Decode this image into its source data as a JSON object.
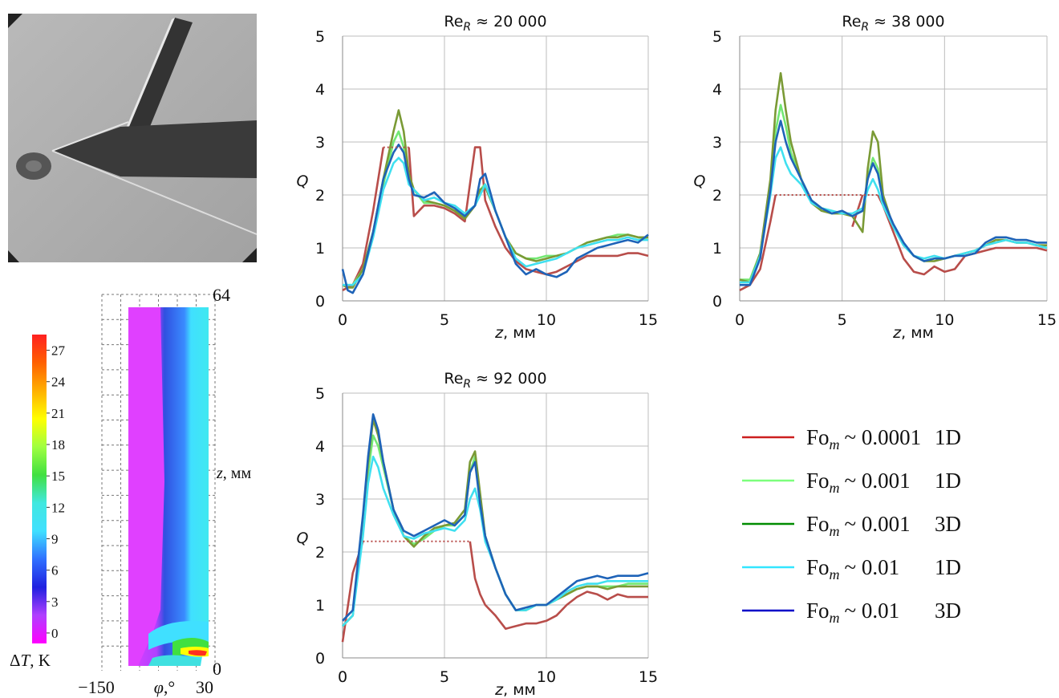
{
  "chart_data": [
    {
      "type": "line",
      "title": {
        "main": "Re",
        "sub": "R",
        "rest": "≈ 20 000"
      },
      "xlabel": {
        "var": "z",
        "unit": ", мм"
      },
      "ylabel": "Q",
      "xlim": [
        0,
        15
      ],
      "ylim": [
        0,
        5
      ],
      "xticks": [
        0,
        5,
        10,
        15
      ],
      "yticks": [
        0,
        1,
        2,
        3,
        4,
        5
      ],
      "grid": true,
      "x": [
        0,
        0.25,
        0.5,
        1,
        1.5,
        2,
        2.5,
        2.75,
        3,
        3.25,
        3.5,
        4,
        4.5,
        5,
        5.5,
        6,
        6.5,
        6.75,
        7,
        7.5,
        8,
        8.5,
        9,
        9.5,
        10,
        10.5,
        11,
        11.5,
        12,
        12.5,
        13,
        13.5,
        14,
        14.5,
        15
      ],
      "series": [
        {
          "color": "#b84d4a",
          "values": [
            0.2,
            0.25,
            0.3,
            0.7,
            1.7,
            2.9,
            null,
            null,
            null,
            2.9,
            1.6,
            1.8,
            1.8,
            1.75,
            1.65,
            1.5,
            2.9,
            2.9,
            1.9,
            1.4,
            1.0,
            0.75,
            0.6,
            0.55,
            0.5,
            0.55,
            0.65,
            0.75,
            0.85,
            0.85,
            0.85,
            0.85,
            0.9,
            0.9,
            0.85
          ]
        },
        {
          "color": "#73e873",
          "values": [
            0.3,
            0.3,
            0.3,
            0.6,
            1.3,
            2.2,
            3.0,
            3.2,
            2.9,
            2.3,
            2.1,
            1.85,
            1.85,
            1.8,
            1.7,
            1.6,
            1.8,
            2.1,
            2.2,
            1.7,
            1.2,
            0.9,
            0.8,
            0.8,
            0.85,
            0.85,
            0.9,
            1.0,
            1.1,
            1.15,
            1.2,
            1.25,
            1.25,
            1.2,
            1.15
          ]
        },
        {
          "color": "#7a9a35",
          "values": [
            0.3,
            0.25,
            0.25,
            0.6,
            1.3,
            2.3,
            3.2,
            3.6,
            3.2,
            2.4,
            2.1,
            1.9,
            1.85,
            1.8,
            1.7,
            1.55,
            1.8,
            2.1,
            2.15,
            1.7,
            1.2,
            0.9,
            0.8,
            0.75,
            0.8,
            0.85,
            0.9,
            1.0,
            1.1,
            1.15,
            1.2,
            1.2,
            1.25,
            1.2,
            1.2
          ]
        },
        {
          "color": "#40e0f0",
          "values": [
            0.3,
            0.3,
            0.3,
            0.5,
            1.2,
            2.1,
            2.6,
            2.7,
            2.6,
            2.2,
            2.1,
            1.9,
            1.95,
            1.85,
            1.8,
            1.65,
            1.8,
            2.0,
            2.2,
            1.7,
            1.2,
            0.8,
            0.65,
            0.7,
            0.75,
            0.8,
            0.9,
            1.0,
            1.05,
            1.1,
            1.15,
            1.15,
            1.2,
            1.15,
            1.15
          ]
        },
        {
          "color": "#1e63b8",
          "values": [
            0.6,
            0.2,
            0.15,
            0.5,
            1.3,
            2.3,
            2.8,
            2.95,
            2.8,
            2.3,
            2.0,
            1.95,
            2.05,
            1.85,
            1.75,
            1.6,
            1.8,
            2.3,
            2.4,
            1.7,
            1.2,
            0.7,
            0.5,
            0.6,
            0.5,
            0.45,
            0.55,
            0.8,
            0.9,
            1.0,
            1.05,
            1.1,
            1.15,
            1.1,
            1.25
          ]
        }
      ],
      "cap_lines": [
        {
          "color": "#b84d4a",
          "x": [
            2,
            3.25
          ],
          "y": [
            2.9,
            2.9
          ]
        }
      ]
    },
    {
      "type": "line",
      "title": {
        "main": "Re",
        "sub": "R",
        "rest": "≈ 38 000"
      },
      "xlabel": {
        "var": "z",
        "unit": ", мм"
      },
      "ylabel": "Q",
      "xlim": [
        0,
        15
      ],
      "ylim": [
        0,
        5
      ],
      "xticks": [
        0,
        5,
        10,
        15
      ],
      "yticks": [
        0,
        1,
        2,
        3,
        4,
        5
      ],
      "grid": true,
      "x": [
        0,
        0.5,
        1,
        1.5,
        1.75,
        2,
        2.25,
        2.5,
        3,
        3.5,
        4,
        4.5,
        5,
        5.5,
        6,
        6.25,
        6.5,
        6.75,
        7,
        7.5,
        8,
        8.5,
        9,
        9.5,
        10,
        10.5,
        11,
        11.5,
        12,
        12.5,
        13,
        13.5,
        14,
        14.5,
        15
      ],
      "series": [
        {
          "color": "#b84d4a",
          "values": [
            0.2,
            0.3,
            0.6,
            1.5,
            2.0,
            null,
            null,
            null,
            null,
            null,
            null,
            null,
            null,
            1.4,
            2.0,
            null,
            null,
            2.0,
            1.8,
            1.3,
            0.8,
            0.55,
            0.5,
            0.65,
            0.55,
            0.6,
            0.85,
            0.9,
            0.95,
            1.0,
            1.0,
            1.0,
            1.0,
            1.0,
            0.95
          ]
        },
        {
          "color": "#73e873",
          "values": [
            0.4,
            0.4,
            0.9,
            2.2,
            3.2,
            3.7,
            3.3,
            2.8,
            2.3,
            1.9,
            1.75,
            1.7,
            1.65,
            1.6,
            1.7,
            2.3,
            2.7,
            2.5,
            1.9,
            1.4,
            1.05,
            0.85,
            0.75,
            0.8,
            0.8,
            0.85,
            0.9,
            0.95,
            1.05,
            1.1,
            1.15,
            1.1,
            1.1,
            1.05,
            1.0
          ]
        },
        {
          "color": "#7a9a35",
          "values": [
            0.4,
            0.35,
            0.9,
            2.3,
            3.6,
            4.3,
            3.6,
            3.0,
            2.3,
            1.85,
            1.7,
            1.65,
            1.65,
            1.6,
            1.3,
            2.5,
            3.2,
            3.0,
            2.0,
            1.4,
            1.05,
            0.85,
            0.75,
            0.75,
            0.8,
            0.85,
            0.9,
            0.95,
            1.05,
            1.15,
            1.15,
            1.1,
            1.1,
            1.05,
            1.05
          ]
        },
        {
          "color": "#40e0f0",
          "values": [
            0.35,
            0.35,
            0.85,
            2.0,
            2.7,
            2.9,
            2.6,
            2.4,
            2.2,
            1.85,
            1.75,
            1.7,
            1.65,
            1.65,
            1.75,
            2.1,
            2.3,
            2.1,
            1.8,
            1.4,
            1.05,
            0.85,
            0.8,
            0.85,
            0.8,
            0.85,
            0.9,
            0.95,
            1.05,
            1.1,
            1.15,
            1.1,
            1.1,
            1.05,
            1.0
          ]
        },
        {
          "color": "#1e63b8",
          "values": [
            0.3,
            0.3,
            0.8,
            2.1,
            3.0,
            3.4,
            3.0,
            2.7,
            2.3,
            1.9,
            1.75,
            1.65,
            1.7,
            1.6,
            1.7,
            2.3,
            2.6,
            2.4,
            1.9,
            1.45,
            1.1,
            0.85,
            0.75,
            0.8,
            0.8,
            0.85,
            0.85,
            0.9,
            1.1,
            1.2,
            1.2,
            1.15,
            1.15,
            1.1,
            1.1
          ]
        }
      ],
      "cap_lines": [
        {
          "color": "#b84d4a",
          "x": [
            1.75,
            6.75
          ],
          "y": [
            2.0,
            2.0
          ]
        }
      ]
    },
    {
      "type": "line",
      "title": {
        "main": "Re",
        "sub": "R",
        "rest": "≈ 92 000"
      },
      "xlabel": {
        "var": "z",
        "unit": ", мм"
      },
      "ylabel": "Q",
      "xlim": [
        0,
        15
      ],
      "ylim": [
        0,
        5
      ],
      "xticks": [
        0,
        5,
        10,
        15
      ],
      "yticks": [
        0,
        1,
        2,
        3,
        4,
        5
      ],
      "grid": true,
      "x": [
        0,
        0.5,
        1,
        1.25,
        1.5,
        1.75,
        2,
        2.5,
        3,
        3.5,
        4,
        4.5,
        5,
        5.5,
        6,
        6.25,
        6.5,
        6.75,
        7,
        7.5,
        8,
        8.5,
        9,
        9.5,
        10,
        10.5,
        11,
        11.5,
        12,
        12.5,
        13,
        13.5,
        14,
        14.5,
        15
      ],
      "series": [
        {
          "color": "#b84d4a",
          "values": [
            0.3,
            1.6,
            2.2,
            null,
            null,
            null,
            null,
            null,
            null,
            null,
            null,
            null,
            null,
            null,
            null,
            2.2,
            1.5,
            1.2,
            1.0,
            0.8,
            0.55,
            0.6,
            0.65,
            0.65,
            0.7,
            0.8,
            1.0,
            1.15,
            1.25,
            1.2,
            1.1,
            1.2,
            1.15,
            1.15,
            1.15
          ]
        },
        {
          "color": "#73e873",
          "values": [
            0.6,
            0.8,
            2.5,
            3.5,
            4.2,
            4.0,
            3.6,
            2.8,
            2.3,
            2.15,
            2.25,
            2.4,
            2.5,
            2.5,
            2.7,
            3.5,
            3.8,
            3.0,
            2.3,
            1.7,
            1.2,
            0.9,
            0.9,
            1.0,
            1.0,
            1.1,
            1.2,
            1.3,
            1.35,
            1.35,
            1.35,
            1.35,
            1.4,
            1.4,
            1.4
          ]
        },
        {
          "color": "#7a9a35",
          "values": [
            0.6,
            0.8,
            2.6,
            3.7,
            4.5,
            4.2,
            3.7,
            2.8,
            2.3,
            2.1,
            2.3,
            2.45,
            2.5,
            2.55,
            2.8,
            3.7,
            3.9,
            3.1,
            2.3,
            1.7,
            1.2,
            0.9,
            0.9,
            1.0,
            1.0,
            1.1,
            1.2,
            1.3,
            1.35,
            1.35,
            1.3,
            1.35,
            1.35,
            1.35,
            1.35
          ]
        },
        {
          "color": "#40e0f0",
          "values": [
            0.6,
            0.8,
            2.3,
            3.3,
            3.8,
            3.6,
            3.2,
            2.7,
            2.3,
            2.25,
            2.35,
            2.4,
            2.45,
            2.4,
            2.6,
            3.0,
            3.2,
            2.8,
            2.2,
            1.7,
            1.2,
            0.9,
            0.9,
            1.0,
            1.0,
            1.1,
            1.25,
            1.35,
            1.4,
            1.4,
            1.45,
            1.45,
            1.45,
            1.45,
            1.45
          ]
        },
        {
          "color": "#1e63b8",
          "values": [
            0.7,
            0.9,
            2.7,
            3.8,
            4.6,
            4.3,
            3.7,
            2.8,
            2.4,
            2.3,
            2.4,
            2.5,
            2.6,
            2.5,
            2.7,
            3.5,
            3.7,
            2.9,
            2.3,
            1.7,
            1.2,
            0.9,
            0.95,
            1.0,
            1.0,
            1.15,
            1.3,
            1.45,
            1.5,
            1.55,
            1.5,
            1.55,
            1.55,
            1.55,
            1.6
          ]
        }
      ],
      "cap_lines": [
        {
          "color": "#b84d4a",
          "x": [
            1,
            6.25
          ],
          "y": [
            2.2,
            2.2
          ]
        }
      ]
    }
  ],
  "legend": [
    {
      "main": "Fo",
      "sub": "m",
      "rest": "~ 0.0001",
      "model": "1D",
      "color": "#cc1f1f"
    },
    {
      "main": "Fo",
      "sub": "m",
      "rest": "~ 0.001",
      "model": "1D",
      "color": "#7dff7d"
    },
    {
      "main": "Fo",
      "sub": "m",
      "rest": "~ 0.001",
      "model": "3D",
      "color": "#008c00"
    },
    {
      "main": "Fo",
      "sub": "m",
      "rest": "~ 0.01",
      "model": "1D",
      "color": "#33e6ff"
    },
    {
      "main": "Fo",
      "sub": "m",
      "rest": "~ 0.01",
      "model": "3D",
      "color": "#0000c8"
    }
  ],
  "colorbar": {
    "clim": [
      -1,
      28.5
    ],
    "ticks": [
      0,
      3,
      6,
      9,
      12,
      15,
      18,
      21,
      24,
      27
    ],
    "colors": [
      "#ff00ff",
      "#b040ff",
      "#2020e0",
      "#3070ff",
      "#40e0ff",
      "#40e8e0",
      "#40e040",
      "#a0ff40",
      "#ffff00",
      "#ffb000",
      "#ff6000",
      "#ff2020"
    ],
    "label": {
      "symbol": "Δ",
      "var": "T",
      "unit": ", K"
    }
  },
  "heatmap": {
    "xlim": [
      -150,
      30
    ],
    "ylim": [
      0,
      64
    ],
    "xticks": [
      {
        "value": -150,
        "label": "−150"
      },
      30
    ],
    "yticks": [
      0,
      64
    ],
    "xlabel": {
      "var": "φ",
      "unit": ",°"
    },
    "ylabel": {
      "var": "z",
      "unit": ", мм"
    }
  }
}
